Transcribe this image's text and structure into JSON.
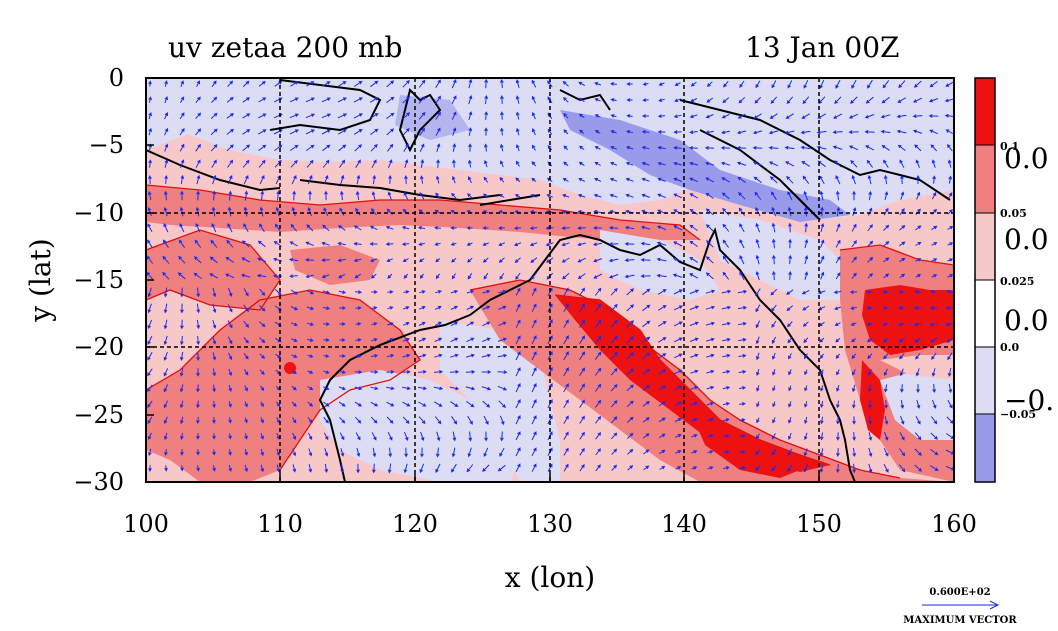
{
  "title": {
    "left": "uv zetaa 200 mb",
    "right": "13 Jan 00Z"
  },
  "axes": {
    "x_label": "x (lon)",
    "y_label": "y (lat)",
    "x_ticks": [
      "100",
      "110",
      "120",
      "130",
      "140",
      "150",
      "160"
    ],
    "y_ticks": [
      "0",
      "−5",
      "−10",
      "−15",
      "−20",
      "−25",
      "−30"
    ]
  },
  "colorbar": {
    "small_labels": [
      "0.1",
      "0.05",
      "0.025",
      "0.0",
      "−0.05"
    ],
    "big_labels": [
      "0.0",
      "0.0",
      "0.0",
      "−0."
    ],
    "colors": [
      "#ee1111",
      "#f08080",
      "#f8c8c8",
      "#ffffff",
      "#dcdcf4",
      "#9a9aea"
    ]
  },
  "vector_key": {
    "value": "0.600E+02",
    "label": "MAXIMUM VECTOR"
  },
  "map": {
    "lon_range": [
      100,
      160
    ],
    "lat_range": [
      -30,
      0
    ],
    "grid_lons": [
      110,
      120,
      130,
      140,
      150
    ],
    "grid_lats": [
      -10,
      -20
    ],
    "fill_colors": {
      "strong_positive": "#ee1111",
      "positive": "#f08080",
      "weak_positive": "#f8c8c8",
      "negative": "#dcdcf4",
      "strong_negative": "#9a9aea"
    }
  }
}
